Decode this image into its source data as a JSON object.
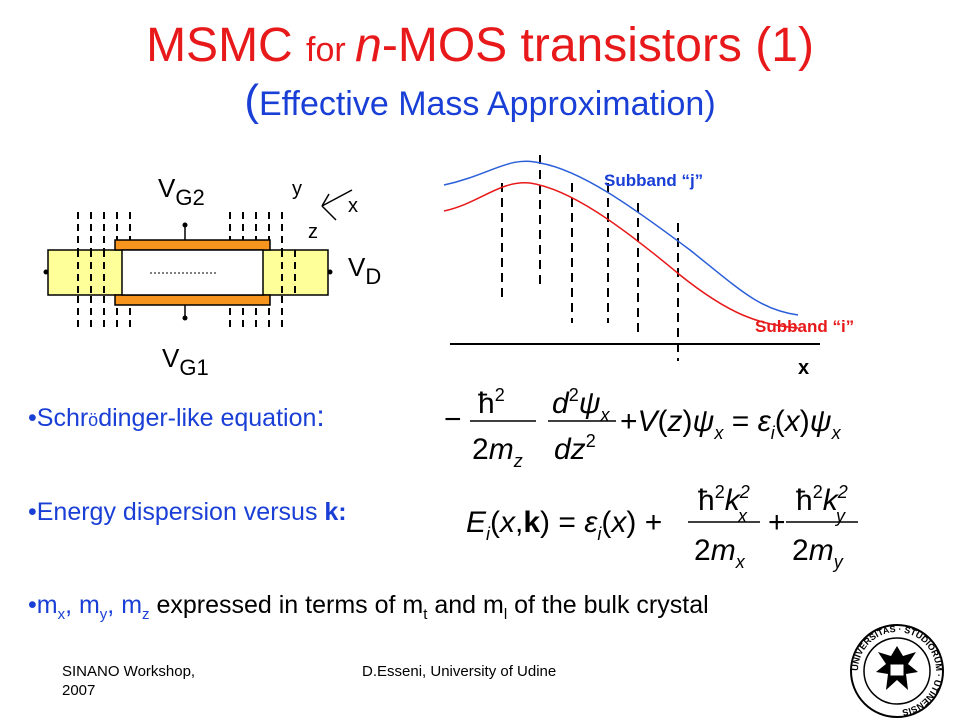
{
  "title": {
    "part1": "MSMC ",
    "part2": "for ",
    "part3": "n",
    "part4": "-MOS transistors (1)"
  },
  "subtitle": {
    "paren_open": "(",
    "text": "Effective Mass Approximation)"
  },
  "device": {
    "vg2_main": "V",
    "vg2_sub": "G2",
    "vg1_main": "V",
    "vg1_sub": "G1",
    "vd_main": "V",
    "vd_sub": "D",
    "axis_y": "y",
    "axis_x": "x",
    "axis_z": "z"
  },
  "band": {
    "subband_j": "Subband “j”",
    "subband_i": "Subband “i”",
    "x_label": "x"
  },
  "colors": {
    "title": "#e8191a",
    "subtitle": "#1a3fd6",
    "bullets": "#1a3fd6",
    "gate": "#f7941d",
    "source_drain": "#ffff99",
    "subband_j_curve": "#2b5fd9",
    "subband_i_curve": "#e8191a"
  },
  "bullets": {
    "b1_dot": "•",
    "b1_pre": "Schr",
    "b1_o": "ö",
    "b1_post": "dinger-like equation",
    "b1_colon": ":",
    "b2_text": "•Energy dispersion versus ",
    "b2_k": "k:",
    "b3_m": "•m",
    "b3_x": "x",
    "b3_comma1": ", m",
    "b3_y": "y",
    "b3_comma2": ", m",
    "b3_z": "z",
    "b3_mid": " expressed in terms of m",
    "b3_t": "t",
    "b3_and": " and m",
    "b3_l": "l",
    "b3_end": " of the bulk crystal"
  },
  "footer": {
    "left_line1": "SINANO Workshop,",
    "left_line2": "2007",
    "center": "D.Esseni, University of Udine"
  },
  "seal": {
    "ring_text": "UNIVERSITAS · STUDIORUM · UTINENSIS"
  }
}
